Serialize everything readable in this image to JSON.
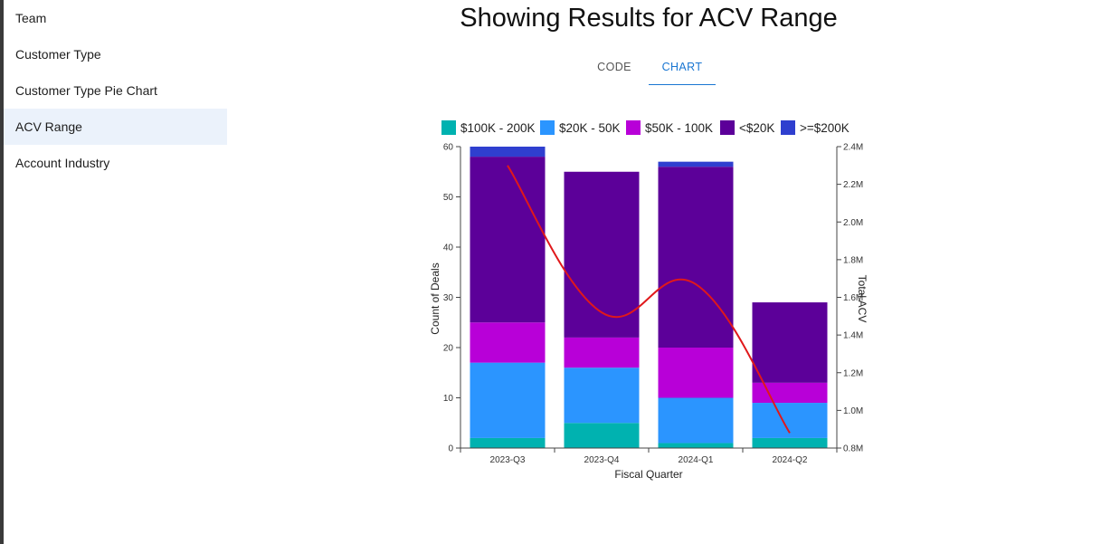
{
  "sidebar": {
    "items": [
      {
        "label": "Team",
        "active": false
      },
      {
        "label": "Customer Type",
        "active": false
      },
      {
        "label": "Customer Type Pie Chart",
        "active": false
      },
      {
        "label": "ACV Range",
        "active": true
      },
      {
        "label": "Account Industry",
        "active": false
      }
    ]
  },
  "main": {
    "title": "Showing Results for ACV Range",
    "tabs": [
      {
        "label": "CODE",
        "active": false
      },
      {
        "label": "CHART",
        "active": true
      }
    ]
  },
  "chart_data": {
    "type": "bar",
    "stacked": true,
    "categories": [
      "2023-Q3",
      "2023-Q4",
      "2024-Q1",
      "2024-Q2"
    ],
    "xlabel": "Fiscal Quarter",
    "ylabel": "Count of Deals",
    "y2label": "Total ACV",
    "ylim": [
      0,
      60
    ],
    "yticks": [
      0,
      10,
      20,
      30,
      40,
      50,
      60
    ],
    "y2lim": [
      800000,
      2400000
    ],
    "y2ticks": [
      "0.8M",
      "1.0M",
      "1.2M",
      "1.4M",
      "1.6M",
      "1.8M",
      "2.0M",
      "2.2M",
      "2.4M"
    ],
    "legend_position": "top",
    "series": [
      {
        "name": "$100K - 200K",
        "color": "#00b2b0",
        "values": [
          2,
          5,
          1,
          2
        ]
      },
      {
        "name": "$20K - 50K",
        "color": "#2b95ff",
        "values": [
          15,
          11,
          9,
          7
        ]
      },
      {
        "name": "$50K - 100K",
        "color": "#b800d8",
        "values": [
          8,
          6,
          10,
          4
        ]
      },
      {
        "name": "<$20K",
        "color": "#5c0099",
        "values": [
          33,
          33,
          36,
          16
        ]
      },
      {
        "name": ">=$200K",
        "color": "#2f3fcf",
        "values": [
          2,
          0,
          1,
          0
        ]
      }
    ],
    "line": {
      "axis": "right",
      "color": "#e0181b",
      "values": [
        2300000,
        1520000,
        1670000,
        880000
      ]
    }
  }
}
